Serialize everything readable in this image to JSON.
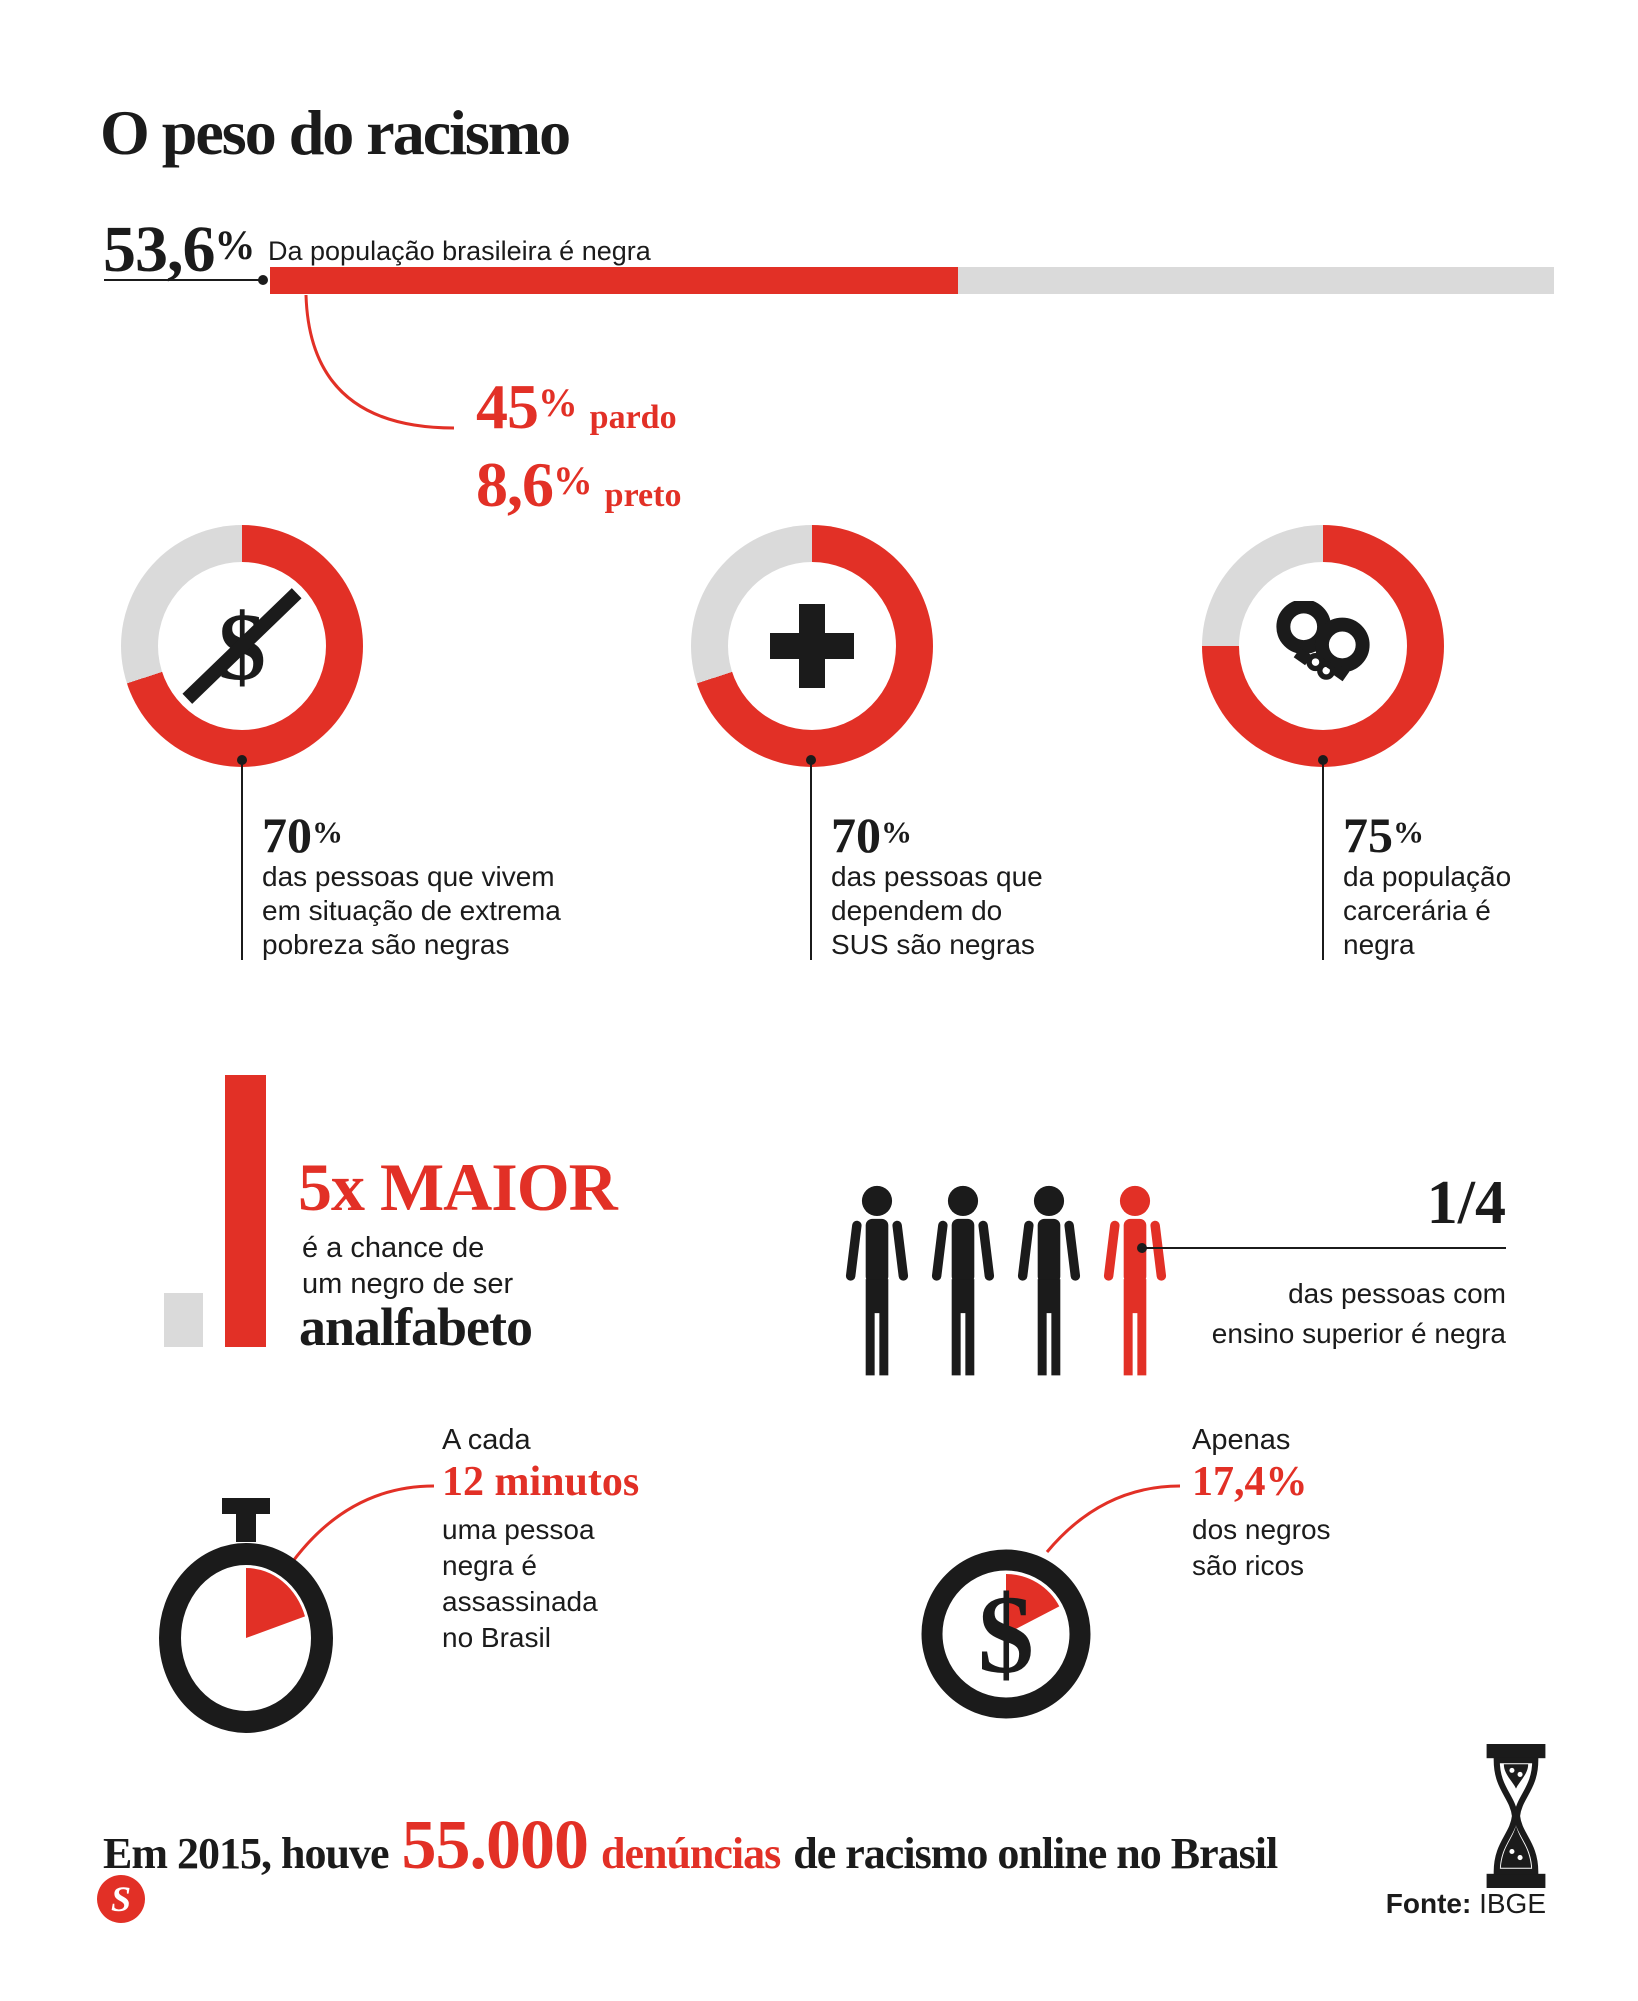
{
  "title": "O peso do racismo",
  "colors": {
    "red": "#e23026",
    "gray": "#dadada",
    "black": "#1b1b1b"
  },
  "population_bar": {
    "value": "53,6",
    "percent_sign": "%",
    "label": "Da população brasileira é negra",
    "percent": 53.6,
    "breakdown": [
      {
        "value": "45",
        "pct": "%",
        "label": "pardo"
      },
      {
        "value": "8,6",
        "pct": "%",
        "label": "preto"
      }
    ]
  },
  "donuts": [
    {
      "value": "70",
      "pct": "%",
      "percent": 70,
      "icon": "money-crossed-icon",
      "lines": [
        "das pessoas que vivem",
        "em situação de extrema",
        "pobreza são negras"
      ]
    },
    {
      "value": "70",
      "pct": "%",
      "percent": 70,
      "icon": "health-cross-icon",
      "lines": [
        "das pessoas que",
        "dependem do",
        "SUS são negras"
      ]
    },
    {
      "value": "75",
      "pct": "%",
      "percent": 75,
      "icon": "handcuffs-icon",
      "lines": [
        "da população",
        "carcerária é",
        "negra"
      ]
    }
  ],
  "illiteracy": {
    "headline": "5x MAIOR",
    "lines": [
      "é a chance de",
      "um negro de ser"
    ],
    "emphasis": "analfabeto",
    "bar_ratio": 5
  },
  "higher_education": {
    "value": "1/4",
    "lines": [
      "das pessoas com",
      "ensino superior é negra"
    ],
    "total_people": 4,
    "highlighted_people": 1
  },
  "murders": {
    "intro": "A cada",
    "value": "12 minutos",
    "minutes": 12,
    "lines": [
      "uma pessoa",
      "negra é",
      "assassinada",
      "no Brasil"
    ]
  },
  "wealth": {
    "intro": "Apenas",
    "value": "17,4%",
    "percent": 17.4,
    "lines": [
      "dos negros",
      "são ricos"
    ]
  },
  "online_racism": {
    "prefix": "Em 2015, houve",
    "value": "55.000",
    "value_suffix": "denúncias",
    "suffix": "de racismo online no Brasil"
  },
  "footer": {
    "logo": "S",
    "source_label": "Fonte:",
    "source": "IBGE"
  },
  "chart_data": [
    {
      "type": "bar",
      "title": "Da população brasileira é negra",
      "categories": [
        "negra"
      ],
      "values": [
        53.6
      ],
      "unit": "%",
      "xlim": [
        0,
        100
      ],
      "annotations": [
        "45% pardo",
        "8,6% preto"
      ]
    },
    {
      "type": "pie",
      "title": "das pessoas que vivem em situação de extrema pobreza são negras",
      "values": [
        70,
        30
      ],
      "labels": [
        "negras",
        "restante"
      ],
      "unit": "%"
    },
    {
      "type": "pie",
      "title": "das pessoas que dependem do SUS são negras",
      "values": [
        70,
        30
      ],
      "labels": [
        "negras",
        "restante"
      ],
      "unit": "%"
    },
    {
      "type": "pie",
      "title": "da população carcerária é negra",
      "values": [
        75,
        25
      ],
      "labels": [
        "negra",
        "restante"
      ],
      "unit": "%"
    },
    {
      "type": "bar",
      "title": "5x MAIOR é a chance de um negro de ser analfabeto",
      "categories": [
        "não negro",
        "negro"
      ],
      "values": [
        1,
        5
      ]
    },
    {
      "type": "pie",
      "title": "1/4 das pessoas com ensino superior é negra",
      "values": [
        25,
        75
      ],
      "labels": [
        "negra",
        "restante"
      ],
      "unit": "%"
    },
    {
      "type": "pie",
      "title": "A cada 12 minutos uma pessoa negra é assassinada no Brasil",
      "values": [
        12,
        48
      ],
      "labels": [
        "12 minutos",
        "resto da hora"
      ],
      "unit": "min"
    },
    {
      "type": "pie",
      "title": "Apenas 17,4% dos negros são ricos",
      "values": [
        17.4,
        82.6
      ],
      "labels": [
        "ricos",
        "restante"
      ],
      "unit": "%"
    },
    {
      "type": "table",
      "title": "Em 2015, houve 55.000 denúncias de racismo online no Brasil",
      "values": [
        55000
      ]
    }
  ]
}
